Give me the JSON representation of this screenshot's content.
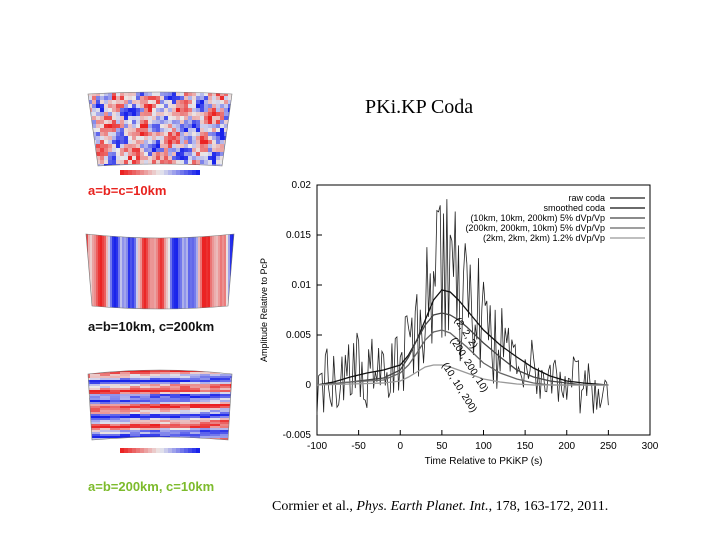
{
  "slide": {
    "title": "PKi.KP Coda",
    "citation": {
      "authors": "Cormier et al., ",
      "journal": "Phys. Earth Planet. Int.",
      "rest": ", 178, 163-172, 2011."
    }
  },
  "panels": [
    {
      "label": "a=b=c=10km",
      "label_color": "#e8231f",
      "pattern": "isotropic"
    },
    {
      "label": "a=b=10km, c=200km",
      "label_color": "#111111",
      "pattern": "vertical-stripes"
    },
    {
      "label": "a=b=200km, c=10km",
      "label_color": "#7dbb2c",
      "pattern": "horizontal-bands"
    }
  ],
  "chart_data": {
    "type": "line",
    "title": "",
    "xlabel": "Time Relative to PKiKP (s)",
    "ylabel": "Amplitude Relative to PcP",
    "xlim": [
      -100,
      300
    ],
    "ylim": [
      -0.005,
      0.02
    ],
    "xticks": [
      -100,
      -50,
      0,
      50,
      100,
      150,
      200,
      250,
      300
    ],
    "yticks": [
      -0.005,
      0,
      0.005,
      0.01,
      0.015,
      0.02
    ],
    "ytick_labels": [
      "-0.005",
      "0",
      "0.005",
      "0.01",
      "0.015",
      "0.02"
    ],
    "legend_position": "top-right",
    "series": [
      {
        "name": "raw coda",
        "color": "#222222",
        "style": "noisy",
        "x": [
          -100,
          -90,
          -80,
          -70,
          -60,
          -50,
          -40,
          -30,
          -20,
          -10,
          0,
          10,
          20,
          30,
          40,
          50,
          60,
          70,
          80,
          90,
          100,
          110,
          120,
          130,
          140,
          150,
          160,
          170,
          180,
          190,
          200,
          210,
          220,
          230,
          240,
          250
        ],
        "y": [
          0,
          0.0005,
          0.001,
          0.0005,
          0.001,
          0.002,
          0.001,
          0.0015,
          0.0005,
          0.001,
          0.002,
          0.0035,
          0.005,
          0.007,
          0.0095,
          0.012,
          0.0115,
          0.009,
          0.0085,
          0.0075,
          0.006,
          0.005,
          0.004,
          0.0035,
          0.003,
          0.002,
          0.0015,
          0.001,
          0.0005,
          0.0005,
          0,
          0,
          0,
          0,
          0,
          0
        ]
      },
      {
        "name": "smoothed coda",
        "color": "#111111",
        "x": [
          -100,
          -80,
          -60,
          -40,
          -20,
          0,
          10,
          20,
          30,
          40,
          50,
          60,
          70,
          80,
          90,
          100,
          120,
          140,
          160,
          180,
          200,
          220,
          250
        ],
        "y": [
          0,
          0.0003,
          0.0008,
          0.0012,
          0.0015,
          0.002,
          0.003,
          0.0045,
          0.0065,
          0.0085,
          0.0095,
          0.0093,
          0.0085,
          0.0075,
          0.0065,
          0.0055,
          0.004,
          0.0028,
          0.0017,
          0.0009,
          0.0004,
          0.0002,
          0
        ]
      },
      {
        "name": "(10km, 10km, 200km) 5% dVp/Vp",
        "color": "#444444",
        "x": [
          -100,
          -60,
          -20,
          0,
          10,
          20,
          30,
          40,
          50,
          60,
          70,
          80,
          90,
          100,
          120,
          140,
          160,
          180,
          200,
          220,
          250
        ],
        "y": [
          0,
          0.0003,
          0.0007,
          0.0015,
          0.0028,
          0.0045,
          0.006,
          0.007,
          0.0072,
          0.007,
          0.0065,
          0.0058,
          0.005,
          0.0042,
          0.0028,
          0.0015,
          0.0008,
          0.0004,
          0.0002,
          0,
          0
        ]
      },
      {
        "name": "(200km, 200km, 10km) 5% dVp/Vp",
        "color": "#666666",
        "x": [
          -100,
          -60,
          -20,
          0,
          10,
          20,
          30,
          40,
          50,
          60,
          70,
          80,
          90,
          100,
          120,
          140,
          160,
          180,
          200,
          250
        ],
        "y": [
          0,
          0.0003,
          0.0005,
          0.0012,
          0.002,
          0.0032,
          0.0045,
          0.0053,
          0.0055,
          0.0052,
          0.0045,
          0.0038,
          0.003,
          0.0022,
          0.0012,
          0.0006,
          0.0002,
          0,
          0,
          0
        ]
      },
      {
        "name": "(2km, 2km, 2km) 1.2% dVp/Vp",
        "color": "#999999",
        "x": [
          -100,
          -60,
          -20,
          0,
          10,
          20,
          30,
          40,
          50,
          60,
          70,
          80,
          90,
          100,
          120,
          140,
          160,
          200,
          250
        ],
        "y": [
          0,
          0.0001,
          0.0002,
          0.0004,
          0.0008,
          0.0013,
          0.0018,
          0.002,
          0.002,
          0.0018,
          0.0015,
          0.0012,
          0.0009,
          0.0006,
          0.0003,
          0.0001,
          0,
          0,
          0
        ]
      }
    ],
    "annotations": [
      {
        "text": "(2, 2, 2)",
        "x": 65,
        "y": 0.0065
      },
      {
        "text": "(200, 200, 10)",
        "x": 60,
        "y": 0.0045
      },
      {
        "text": "(10, 10, 200)",
        "x": 50,
        "y": 0.002
      }
    ]
  }
}
